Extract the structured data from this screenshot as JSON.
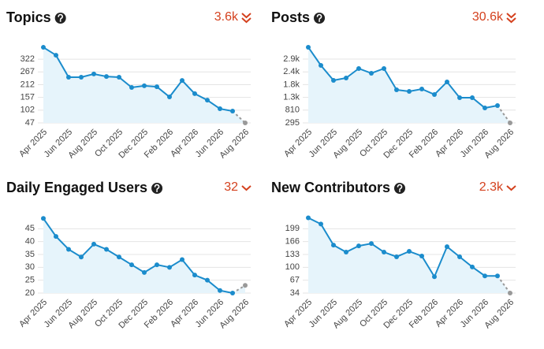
{
  "chart_data": [
    {
      "type": "line",
      "title": "Topics",
      "trend": "3.6k",
      "trend_chevrons": 2,
      "trend_color": "#d4411e",
      "categories": [
        "Apr 2025",
        null,
        "Jun 2025",
        null,
        "Aug 2025",
        null,
        "Oct 2025",
        null,
        "Dec 2025",
        null,
        "Feb 2026",
        null,
        "Apr 2026",
        null,
        "Jun 2026",
        null,
        "Aug 2026"
      ],
      "values": [
        373,
        339,
        244,
        244,
        258,
        247,
        244,
        200,
        207,
        203,
        159,
        230,
        173,
        145,
        108,
        98,
        47
      ],
      "ylim": [
        47,
        380
      ],
      "yticks": [
        47,
        102,
        157,
        212,
        267,
        322
      ],
      "grid": true,
      "color": "#1b8ccc",
      "fill": "#e6f4fb",
      "last_color": "#999999"
    },
    {
      "type": "line",
      "title": "Posts",
      "trend": "30.6k",
      "trend_chevrons": 2,
      "trend_color": "#d4411e",
      "categories": [
        "Apr 2025",
        null,
        "Jun 2025",
        null,
        "Aug 2025",
        null,
        "Oct 2025",
        null,
        "Dec 2025",
        null,
        "Feb 2026",
        null,
        "Apr 2026",
        null,
        "Jun 2026",
        null,
        "Aug 2026"
      ],
      "values": [
        3348,
        2616,
        2012,
        2107,
        2489,
        2298,
        2489,
        1630,
        1567,
        1662,
        1440,
        1949,
        1313,
        1313,
        899,
        995,
        295
      ],
      "ylim": [
        295,
        3410
      ],
      "yticks": [
        295,
        810,
        {
          "value": 1325,
          "label": "1.3k"
        },
        {
          "value": 1840,
          "label": "1.8k"
        },
        {
          "value": 2355,
          "label": "2.4k"
        },
        {
          "value": 2870,
          "label": "2.9k"
        }
      ],
      "grid": true,
      "color": "#1b8ccc",
      "fill": "#e6f4fb",
      "last_color": "#999999"
    },
    {
      "type": "line",
      "title": "Daily Engaged Users",
      "trend": "32",
      "trend_chevrons": 1,
      "trend_color": "#d4411e",
      "categories": [
        "Apr 2025",
        null,
        "Jun 2025",
        null,
        "Aug 2025",
        null,
        "Oct 2025",
        null,
        "Dec 2025",
        null,
        "Feb 2026",
        null,
        "Apr 2026",
        null,
        "Jun 2026",
        null,
        "Aug 2026"
      ],
      "values": [
        49,
        42,
        37,
        34,
        39,
        37,
        34,
        31,
        28,
        31,
        30,
        33,
        27,
        25,
        21,
        20,
        23
      ],
      "ylim": [
        20,
        50
      ],
      "yticks": [
        20,
        25,
        30,
        35,
        40,
        45
      ],
      "grid": true,
      "color": "#1b8ccc",
      "fill": "#e6f4fb",
      "last_color": "#999999"
    },
    {
      "type": "line",
      "title": "New Contributors",
      "trend": "2.3k",
      "trend_chevrons": 1,
      "trend_color": "#d4411e",
      "categories": [
        "Apr 2025",
        null,
        "Jun 2025",
        null,
        "Aug 2025",
        null,
        "Oct 2025",
        null,
        "Dec 2025",
        null,
        "Feb 2026",
        null,
        "Apr 2026",
        null,
        "Jun 2026",
        null,
        "Aug 2026"
      ],
      "values": [
        227,
        211,
        157,
        139,
        155,
        161,
        139,
        127,
        141,
        129,
        76,
        153,
        127,
        101,
        78,
        78,
        34
      ],
      "ylim": [
        34,
        232
      ],
      "yticks": [
        34,
        67,
        100,
        133,
        166,
        199
      ],
      "grid": true,
      "color": "#1b8ccc",
      "fill": "#e6f4fb",
      "last_color": "#999999"
    }
  ]
}
